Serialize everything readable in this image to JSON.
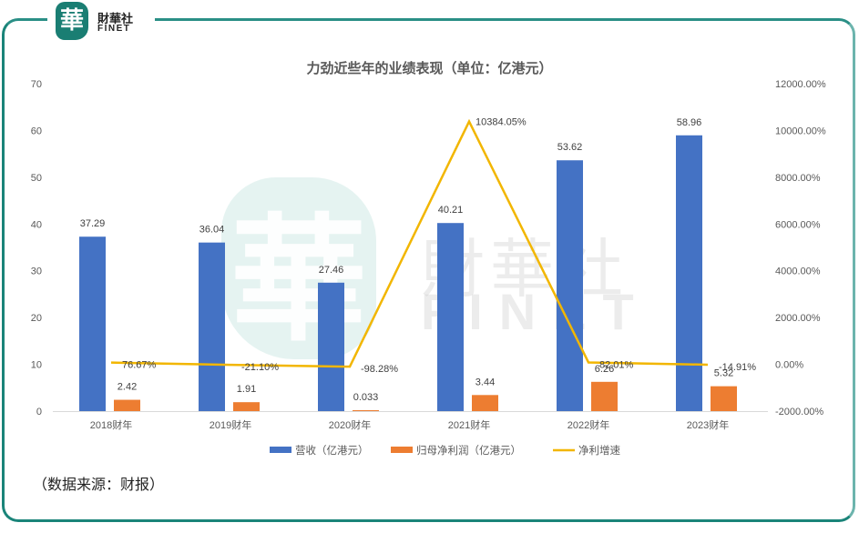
{
  "brand": {
    "logo_glyph": "華",
    "name_cn": "財華社",
    "name_en": "FINET",
    "accent_color": "#1a8479"
  },
  "watermark": {
    "glyph": "華",
    "name_cn": "財華社",
    "name_en": "FINET"
  },
  "footer": {
    "source_text": "（数据来源：财报）"
  },
  "chart_data": {
    "type": "bar",
    "title": "力劲近些年的业绩表现（单位：亿港元）",
    "categories": [
      "2018财年",
      "2019财年",
      "2020财年",
      "2021财年",
      "2022财年",
      "2023财年"
    ],
    "series": [
      {
        "name": "营收（亿港元）",
        "type": "bar",
        "axis": "left",
        "color": "#4472c4",
        "values": [
          37.29,
          36.04,
          27.46,
          40.21,
          53.62,
          58.96
        ],
        "labels": [
          "37.29",
          "36.04",
          "27.46",
          "40.21",
          "53.62",
          "58.96"
        ]
      },
      {
        "name": "归母净利润（亿港元）",
        "type": "bar",
        "axis": "left",
        "color": "#ed7d31",
        "values": [
          2.42,
          1.91,
          0.033,
          3.44,
          6.26,
          5.32
        ],
        "labels": [
          "2.42",
          "1.91",
          "0.033",
          "3.44",
          "6.26",
          "5.32"
        ]
      },
      {
        "name": "净利增速",
        "type": "line",
        "axis": "right",
        "color": "#f2b600",
        "values": [
          76.67,
          -21.1,
          -98.28,
          10384.05,
          82.01,
          -14.91
        ],
        "labels": [
          "76.67%",
          "-21.10%",
          "-98.28%",
          "10384.05%",
          "82.01%",
          "-14.91%"
        ]
      }
    ],
    "left_axis": {
      "ylim": [
        0,
        70
      ],
      "ticks": [
        "0",
        "10",
        "20",
        "30",
        "40",
        "50",
        "60",
        "70"
      ]
    },
    "right_axis": {
      "ylim": [
        -2000,
        12000
      ],
      "ticks": [
        "-2000.00%",
        "0.00%",
        "2000.00%",
        "4000.00%",
        "6000.00%",
        "8000.00%",
        "10000.00%",
        "12000.00%"
      ]
    },
    "xlabel": "",
    "ylabel": "",
    "grid": false,
    "legend_position": "bottom",
    "legend": [
      "营收（亿港元）",
      "归母净利润（亿港元）",
      "净利增速"
    ]
  }
}
